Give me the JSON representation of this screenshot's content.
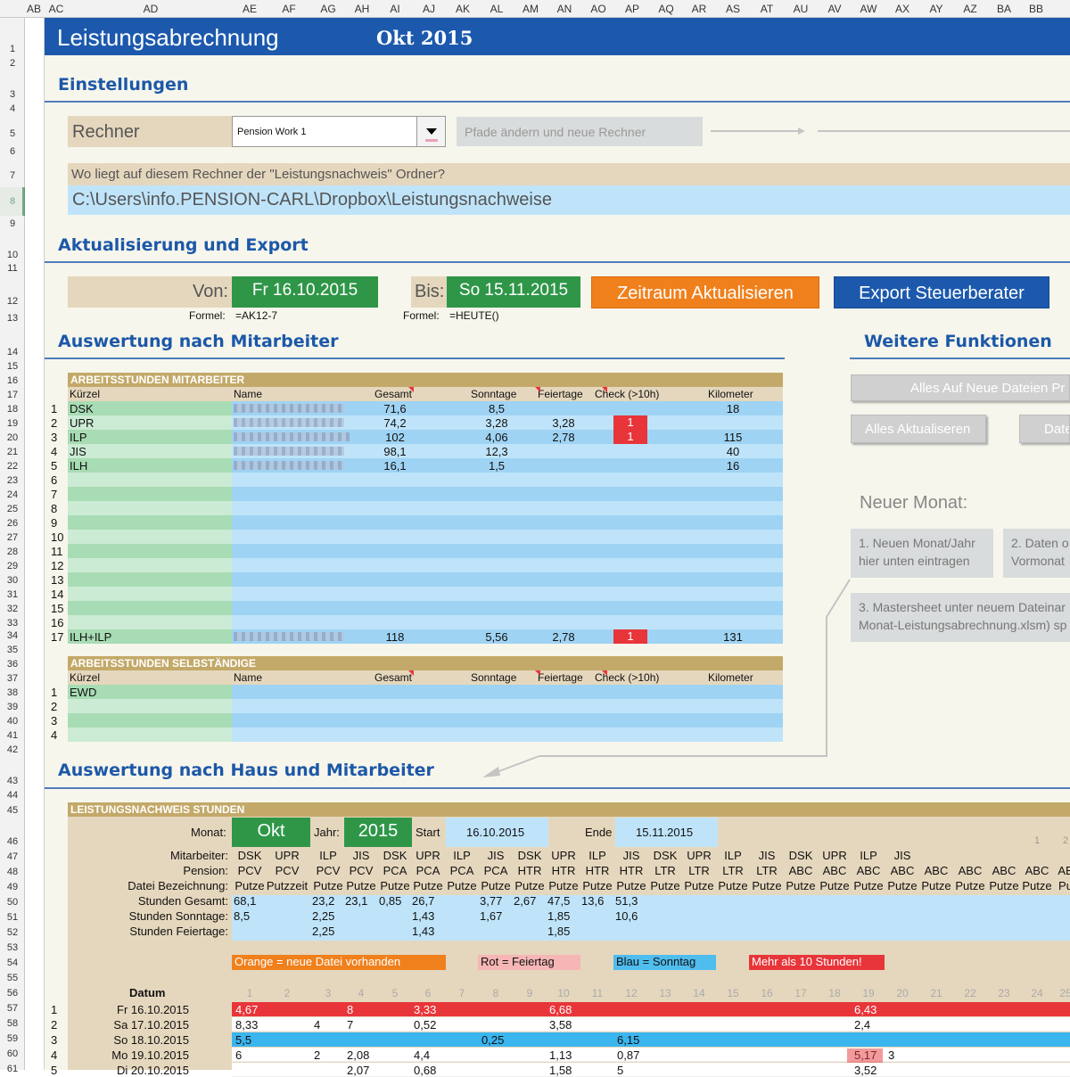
{
  "columns": [
    "AB",
    "AC",
    "AD",
    "AE",
    "AF",
    "AG",
    "AH",
    "AI",
    "AJ",
    "AK",
    "AL",
    "AM",
    "AN",
    "AO",
    "AP",
    "AQ",
    "AR",
    "AS",
    "AT",
    "AU",
    "AV",
    "AW",
    "AX",
    "AY",
    "AZ",
    "BA",
    "BB"
  ],
  "rows": [
    "1",
    "2",
    "3",
    "4",
    "5",
    "6",
    "7",
    "8",
    "9",
    "10",
    "11",
    "12",
    "13",
    "14",
    "15",
    "16",
    "17",
    "18",
    "19",
    "20",
    "21",
    "22",
    "23",
    "24",
    "25",
    "26",
    "27",
    "28",
    "29",
    "30",
    "31",
    "32",
    "33",
    "34",
    "35",
    "36",
    "37",
    "38",
    "39",
    "40",
    "41",
    "42",
    "43",
    "44",
    "45",
    "46",
    "47",
    "48",
    "49",
    "50",
    "51",
    "52",
    "53",
    "54",
    "55",
    "56",
    "57",
    "58",
    "59",
    "60",
    "61"
  ],
  "title": {
    "app": "Leistungsabrechnung",
    "month": "Okt 2015"
  },
  "settings": {
    "heading": "Einstellungen",
    "rechner_label": "Rechner",
    "rechner_value": "Pension Work 1",
    "paths_button": "Pfade ändern und neue Rechner",
    "folder_question": "Wo liegt auf diesem Rechner der \"Leistungsnachweis\" Ordner?",
    "folder_path": "C:\\Users\\info.PENSION-CARL\\Dropbox\\Leistungsnachweise"
  },
  "update": {
    "heading": "Aktualisierung und Export",
    "von_label": "Von:",
    "von_value": "Fr 16.10.2015",
    "bis_label": "Bis:",
    "bis_value": "So 15.11.2015",
    "refresh_button": "Zeitraum Aktualisieren",
    "export_button": "Export Steuerberater",
    "formel_label": "Formel:",
    "formel_von": "=AK12-7",
    "formel_bis": "=HEUTE()"
  },
  "employees": {
    "heading": "Auswertung nach Mitarbeiter",
    "table_title": "ARBEITSSTUNDEN MITARBEITER",
    "headers": {
      "kuerzel": "Kürzel",
      "name": "Name",
      "gesamt": "Gesamt",
      "sonntage": "Sonntage",
      "feiertage": "Feiertage",
      "check": "Check (>10h)",
      "km": "Kilometer"
    },
    "rows": [
      {
        "n": "1",
        "k": "DSK",
        "g": "71,6",
        "s": "8,5",
        "f": "",
        "c": "",
        "km": "18"
      },
      {
        "n": "2",
        "k": "UPR",
        "g": "74,2",
        "s": "3,28",
        "f": "3,28",
        "c": "1",
        "km": ""
      },
      {
        "n": "3",
        "k": "ILP",
        "g": "102",
        "s": "4,06",
        "f": "2,78",
        "c": "1",
        "km": "115"
      },
      {
        "n": "4",
        "k": "JIS",
        "g": "98,1",
        "s": "12,3",
        "f": "",
        "c": "",
        "km": "40"
      },
      {
        "n": "5",
        "k": "ILH",
        "g": "16,1",
        "s": "1,5",
        "f": "",
        "c": "",
        "km": "16"
      },
      {
        "n": "6",
        "k": "",
        "g": "",
        "s": "",
        "f": "",
        "c": "",
        "km": ""
      },
      {
        "n": "7",
        "k": "",
        "g": "",
        "s": "",
        "f": "",
        "c": "",
        "km": ""
      },
      {
        "n": "8",
        "k": "",
        "g": "",
        "s": "",
        "f": "",
        "c": "",
        "km": ""
      },
      {
        "n": "9",
        "k": "",
        "g": "",
        "s": "",
        "f": "",
        "c": "",
        "km": ""
      },
      {
        "n": "10",
        "k": "",
        "g": "",
        "s": "",
        "f": "",
        "c": "",
        "km": ""
      },
      {
        "n": "11",
        "k": "",
        "g": "",
        "s": "",
        "f": "",
        "c": "",
        "km": ""
      },
      {
        "n": "12",
        "k": "",
        "g": "",
        "s": "",
        "f": "",
        "c": "",
        "km": ""
      },
      {
        "n": "13",
        "k": "",
        "g": "",
        "s": "",
        "f": "",
        "c": "",
        "km": ""
      },
      {
        "n": "14",
        "k": "",
        "g": "",
        "s": "",
        "f": "",
        "c": "",
        "km": ""
      },
      {
        "n": "15",
        "k": "",
        "g": "",
        "s": "",
        "f": "",
        "c": "",
        "km": ""
      },
      {
        "n": "16",
        "k": "",
        "g": "",
        "s": "",
        "f": "",
        "c": "",
        "km": ""
      },
      {
        "n": "17",
        "k": "ILH+ILP",
        "g": "118",
        "s": "5,56",
        "f": "2,78",
        "c": "1",
        "km": "131"
      }
    ]
  },
  "self": {
    "table_title": "ARBEITSSTUNDEN SELBSTÄNDIGE",
    "rows": [
      {
        "n": "1",
        "k": "EWD"
      },
      {
        "n": "2",
        "k": ""
      },
      {
        "n": "3",
        "k": ""
      },
      {
        "n": "4",
        "k": ""
      }
    ]
  },
  "functions": {
    "heading": "Weitere Funktionen",
    "btn_new_files": "Alles Auf Neue Dateien Pr",
    "btn_update_all": "Alles Aktualiseren",
    "btn_date": "Date",
    "new_month": "Neuer Monat:",
    "step1_a": "1. Neuen Monat/Jahr",
    "step1_b": "hier unten eintragen",
    "step2_a": "2. Daten o",
    "step2_b": "Vormonat",
    "step3_a": "3. Mastersheet unter neuem Dateinar",
    "step3_b": "Monat-Leistungsabrechnung.xlsm) sp"
  },
  "house": {
    "heading": "Auswertung nach Haus und Mitarbeiter",
    "table_title": "LEISTUNGSNACHWEIS STUNDEN",
    "monat_label": "Monat:",
    "monat_value": "Okt",
    "jahr_label": "Jahr:",
    "jahr_value": "2015",
    "start_label": "Start",
    "start_value": "16.10.2015",
    "ende_label": "Ende",
    "ende_value": "15.11.2015",
    "corner_nums": [
      "1",
      "2"
    ],
    "row_labels": [
      "Mitarbeiter:",
      "Pension:",
      "Datei Bezeichnung:",
      "Stunden Gesamt:",
      "Stunden Sonntage:",
      "Stunden Feiertage:"
    ],
    "mitarbeiter": [
      "DSK",
      "UPR",
      "ILP",
      "JIS",
      "DSK",
      "UPR",
      "ILP",
      "JIS",
      "DSK",
      "UPR",
      "ILP",
      "JIS",
      "DSK",
      "UPR",
      "ILP",
      "JIS",
      "DSK",
      "UPR",
      "ILP",
      "JIS"
    ],
    "pension": [
      "PCV",
      "PCV",
      "PCV",
      "PCV",
      "PCA",
      "PCA",
      "PCA",
      "PCA",
      "HTR",
      "HTR",
      "HTR",
      "HTR",
      "LTR",
      "LTR",
      "LTR",
      "LTR",
      "ABC",
      "ABC",
      "ABC",
      "ABC",
      "ABC",
      "ABC",
      "ABC",
      "ABC",
      "AE"
    ],
    "datei": [
      "Putze",
      "Putzzeit",
      "Putze",
      "Putze",
      "Putze",
      "Putze",
      "Putze",
      "Putze",
      "Putze",
      "Putze",
      "Putze",
      "Putze",
      "Putze",
      "Putze",
      "Putze",
      "Putze",
      "Putze",
      "Putze",
      "Putze",
      "Putze",
      "Putze",
      "Putze",
      "Putze",
      "Putze",
      "Pu"
    ],
    "gesamt": [
      "68,1",
      "",
      "23,2",
      "23,1",
      "0,85",
      "26,7",
      "",
      "3,77",
      "2,67",
      "47,5",
      "13,6",
      "51,3"
    ],
    "sonntage": [
      "8,5",
      "",
      "2,25",
      "",
      "",
      "1,43",
      "",
      "1,67",
      "",
      "1,85",
      "",
      "10,6"
    ],
    "feiertage": [
      "",
      "",
      "2,25",
      "",
      "",
      "1,43",
      "",
      "",
      "",
      "1,85",
      "",
      ""
    ],
    "legend": {
      "orange": "Orange = neue Datei vorhanden",
      "rot": "Rot = Feiertag",
      "blau": "Blau = Sonntag",
      "mehr": "Mehr als 10 Stunden!"
    },
    "datum_label": "Datum",
    "colnums": [
      "1",
      "2",
      "3",
      "4",
      "5",
      "6",
      "7",
      "8",
      "9",
      "10",
      "11",
      "12",
      "13",
      "14",
      "15",
      "16",
      "17",
      "18",
      "19",
      "20",
      "21",
      "22",
      "23",
      "24",
      "25"
    ],
    "days": [
      {
        "n": "1",
        "d": "Fr 16.10.2015",
        "v": [
          "4,67",
          "",
          "",
          "8",
          "",
          "3,33",
          "",
          "",
          "",
          "6,68",
          "",
          "",
          "",
          "",
          "",
          "",
          "",
          "",
          "6,43",
          "",
          "",
          "",
          "",
          "",
          ""
        ]
      },
      {
        "n": "2",
        "d": "Sa 17.10.2015",
        "v": [
          "8,33",
          "",
          "4",
          "7",
          "",
          "0,52",
          "",
          "",
          "",
          "3,58",
          "",
          "",
          "",
          "",
          "",
          "",
          "",
          "",
          "2,4",
          "",
          "",
          "",
          "",
          "",
          ""
        ]
      },
      {
        "n": "3",
        "d": "So 18.10.2015",
        "v": [
          "5,5",
          "",
          "",
          "",
          "",
          "",
          "",
          "0,25",
          "",
          "",
          "",
          "6,15",
          "",
          "",
          "",
          "",
          "",
          "",
          "",
          "",
          "",
          "",
          "",
          "",
          ""
        ]
      },
      {
        "n": "4",
        "d": "Mo 19.10.2015",
        "v": [
          "6",
          "",
          "2",
          "2,08",
          "",
          "4,4",
          "",
          "",
          "",
          "1,13",
          "",
          "0,87",
          "",
          "",
          "",
          "",
          "",
          "",
          "5,17",
          "3",
          "",
          "",
          "",
          "",
          ""
        ]
      },
      {
        "n": "5",
        "d": "Di 20.10.2015",
        "v": [
          "",
          "",
          "",
          "2,07",
          "",
          "0,68",
          "",
          "",
          "",
          "1,58",
          "",
          "5",
          "",
          "",
          "",
          "",
          "",
          "",
          "3,52",
          "",
          "",
          "",
          "",
          "",
          ""
        ]
      }
    ]
  }
}
